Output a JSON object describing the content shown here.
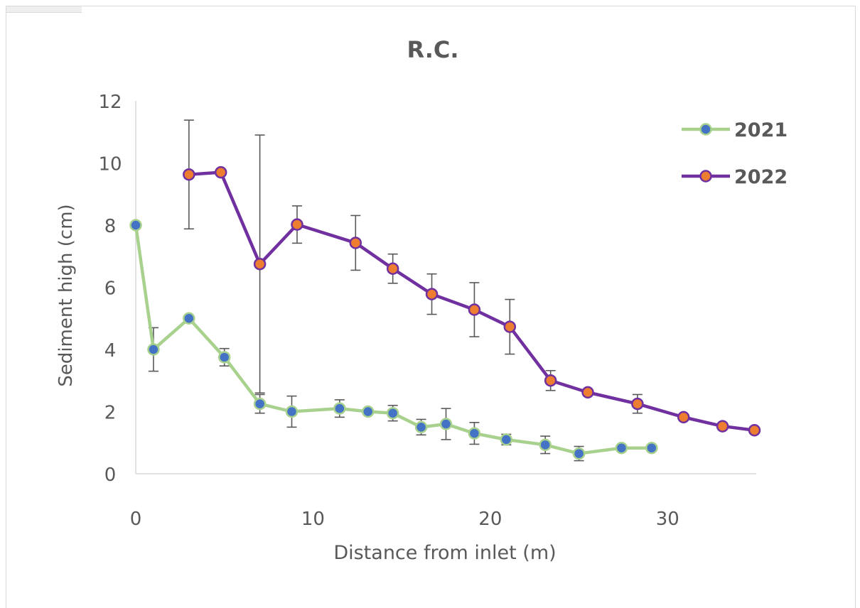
{
  "chart_data": {
    "type": "line",
    "title": "R.C.",
    "xlabel": "Distance from inlet (m)",
    "ylabel": "Sediment high (cm)",
    "xlim": [
      0,
      35
    ],
    "ylim": [
      0,
      12
    ],
    "xticks": [
      0,
      10,
      20,
      30
    ],
    "yticks": [
      0,
      2,
      4,
      6,
      8,
      10,
      12
    ],
    "grid": false,
    "legend_position": "top-right",
    "series": [
      {
        "name": "2021",
        "line_color": "#a9d18e",
        "marker_color": "#4472c4",
        "x": [
          0,
          1,
          3,
          5,
          7,
          8.8,
          11.5,
          13.1,
          14.5,
          16.1,
          17.5,
          19.1,
          20.9,
          23.1,
          25,
          27.4,
          29.1
        ],
        "y": [
          8.0,
          4.0,
          5.0,
          3.75,
          2.25,
          2.0,
          2.1,
          2.0,
          1.95,
          1.5,
          1.6,
          1.3,
          1.1,
          0.93,
          0.65,
          0.83,
          0.83
        ],
        "error": [
          null,
          0.7,
          null,
          0.28,
          0.3,
          0.5,
          0.28,
          null,
          0.25,
          0.25,
          0.5,
          0.35,
          0.17,
          0.28,
          0.23,
          null,
          null
        ]
      },
      {
        "name": "2022",
        "line_color": "#7030a0",
        "marker_color": "#ed7d31",
        "x": [
          3,
          4.8,
          7,
          9.1,
          12.4,
          14.5,
          16.7,
          19.1,
          21.1,
          23.4,
          25.5,
          28.3,
          30.9,
          33.1,
          34.9
        ],
        "y": [
          9.63,
          9.7,
          6.75,
          8.02,
          7.43,
          6.6,
          5.78,
          5.28,
          4.73,
          3.0,
          2.62,
          2.25,
          1.82,
          1.53,
          1.4
        ],
        "error": [
          1.75,
          null,
          4.15,
          0.6,
          0.88,
          0.47,
          0.65,
          0.87,
          0.88,
          0.32,
          null,
          0.3,
          null,
          null,
          null
        ]
      }
    ]
  }
}
